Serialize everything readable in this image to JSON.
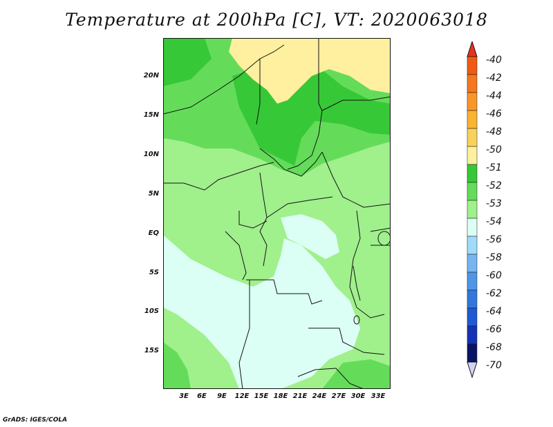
{
  "title": "Temperature at 200hPa [C], VT: 2020063018",
  "credit": "GrADS: IGES/COLA",
  "map": {
    "y_ticks": [
      "20N",
      "15N",
      "10N",
      "5N",
      "EQ",
      "5S",
      "10S",
      "15S"
    ],
    "x_ticks": [
      "3E",
      "6E",
      "9E",
      "12E",
      "15E",
      "18E",
      "21E",
      "24E",
      "27E",
      "30E",
      "33E"
    ]
  },
  "colorbar": {
    "labels": [
      "-40",
      "-42",
      "-44",
      "-46",
      "-48",
      "-50",
      "-51",
      "-52",
      "-53",
      "-54",
      "-56",
      "-58",
      "-60",
      "-62",
      "-64",
      "-66",
      "-68",
      "-70"
    ],
    "colors": [
      "#e8321e",
      "#f05a14",
      "#f5781e",
      "#fa9628",
      "#fab432",
      "#fad25a",
      "#fff0a0",
      "#37c837",
      "#64dc5a",
      "#a0f08c",
      "#dcfff5",
      "#a0dcfa",
      "#78b4f0",
      "#5096e6",
      "#3278dc",
      "#1e5ad2",
      "#1432b4",
      "#0a1464",
      "#d2d2f5"
    ]
  }
}
